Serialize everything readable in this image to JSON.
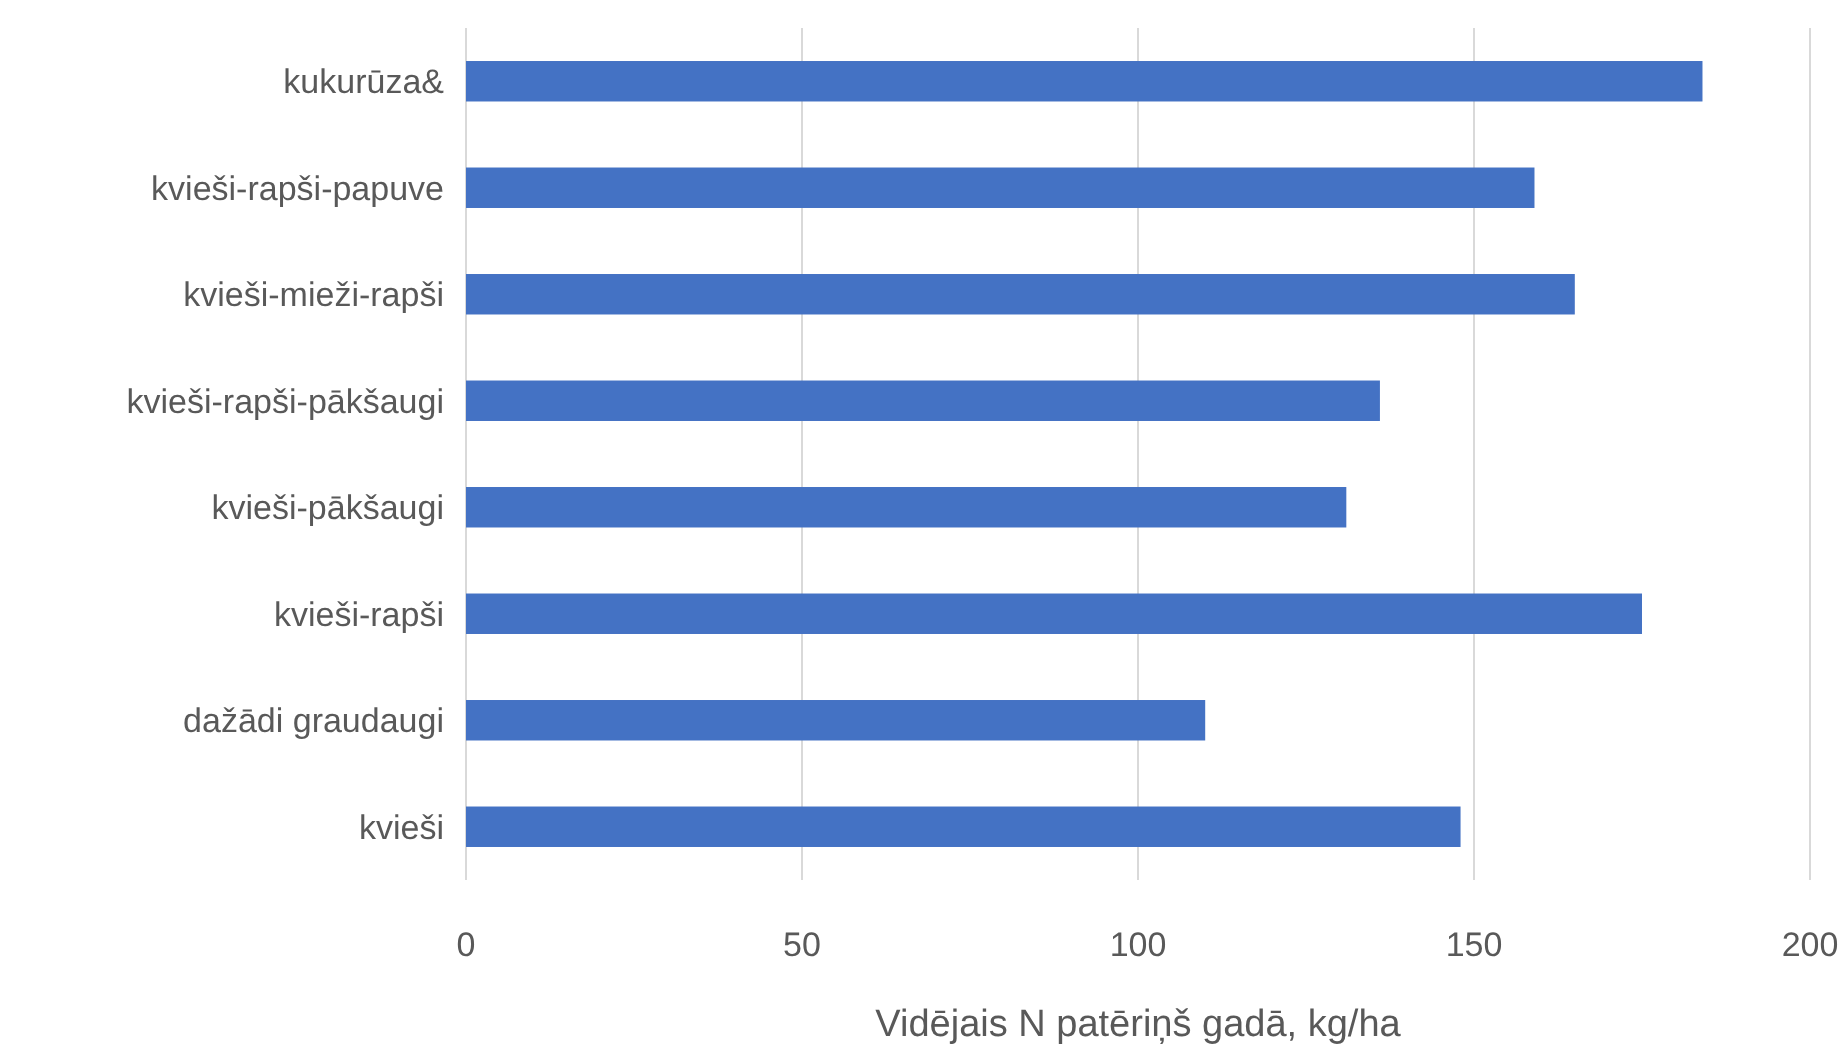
{
  "chart_data": {
    "type": "bar",
    "orientation": "horizontal",
    "xlabel": "Vidējais N patēriņš gadā, kg/ha",
    "categories": [
      "kukurūza&",
      "kvieši-rapši-papuve",
      "kvieši-mieži-rapši",
      "kvieši-rapši-pākšaugi",
      "kvieši-pākšaugi",
      "kvieši-rapši",
      "dažādi graudaugi",
      "kvieši"
    ],
    "values": [
      184,
      159,
      165,
      136,
      131,
      175,
      110,
      148
    ],
    "color": "#4472c4",
    "xlim": [
      0,
      200
    ],
    "xticks": [
      0,
      50,
      100,
      150,
      200
    ],
    "grid": "x"
  }
}
